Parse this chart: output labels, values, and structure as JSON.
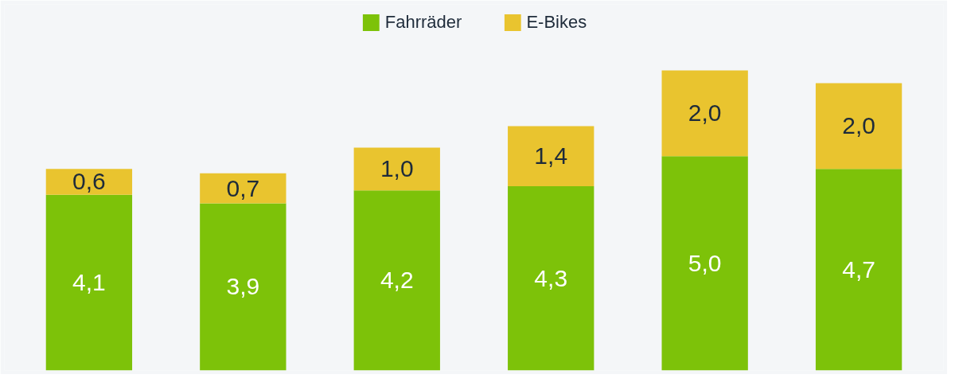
{
  "chart_data": {
    "type": "bar",
    "stacked": true,
    "categories": [
      null,
      null,
      null,
      null,
      null,
      null
    ],
    "series": [
      {
        "name": "Fahrräder",
        "color": "#7dc209",
        "values": [
          4.1,
          3.9,
          4.2,
          4.3,
          5.0,
          4.7
        ],
        "value_labels": [
          "4,1",
          "3,9",
          "4,2",
          "4,3",
          "5,0",
          "4,7"
        ]
      },
      {
        "name": "E-Bikes",
        "color": "#e9c42f",
        "values": [
          0.6,
          0.7,
          1.0,
          1.4,
          2.0,
          2.0
        ],
        "value_labels": [
          "0,6",
          "0,7",
          "1,0",
          "1,4",
          "2,0",
          "2,0"
        ]
      }
    ],
    "legend": "top",
    "grid": false
  }
}
